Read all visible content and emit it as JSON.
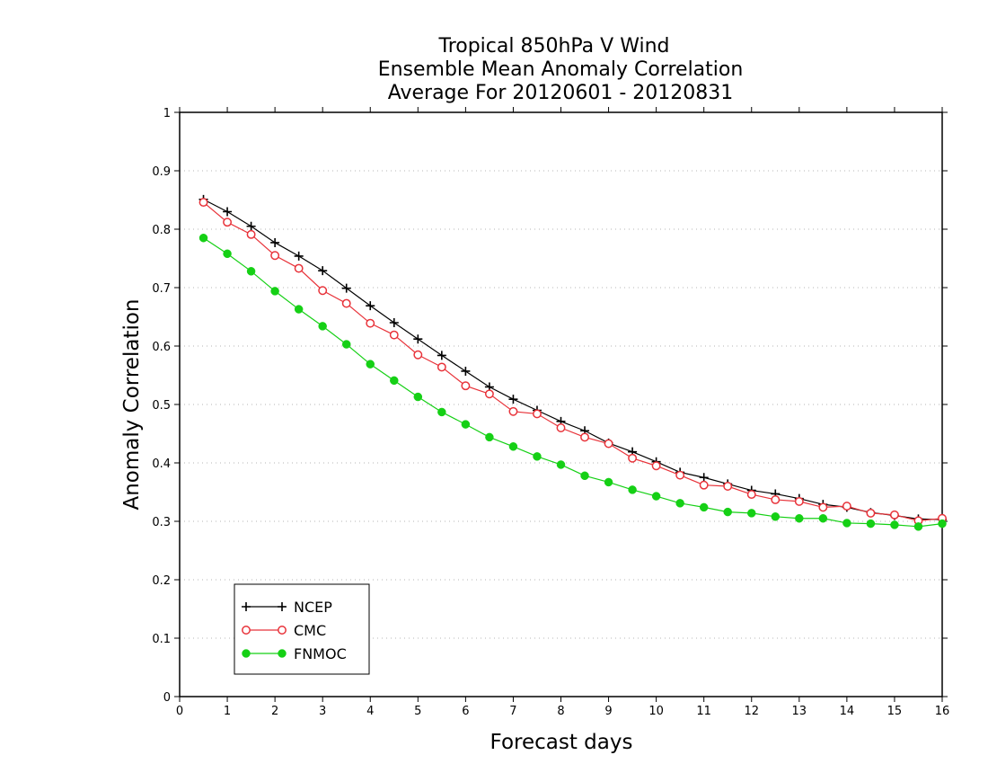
{
  "chart_data": {
    "type": "line",
    "title": [
      "Tropical 850hPa V Wind",
      "Ensemble Mean Anomaly Correlation",
      "Average For 20120601 - 20120831"
    ],
    "xlabel": "Forecast days",
    "ylabel": "Anomaly Correlation",
    "xlim": [
      0,
      16
    ],
    "ylim": [
      0,
      1
    ],
    "xticks": [
      "0",
      "1",
      "2",
      "3",
      "4",
      "5",
      "6",
      "7",
      "8",
      "9",
      "10",
      "11",
      "12",
      "13",
      "14",
      "15",
      "16"
    ],
    "yticks": [
      "0",
      "0.1",
      "0.2",
      "0.3",
      "0.4",
      "0.5",
      "0.6",
      "0.7",
      "0.8",
      "0.9",
      "1"
    ],
    "grid": true,
    "legend_position": "bottom-left",
    "x": [
      0.5,
      1,
      1.5,
      2,
      2.5,
      3,
      3.5,
      4,
      4.5,
      5,
      5.5,
      6,
      6.5,
      7,
      7.5,
      8,
      8.5,
      9,
      9.5,
      10,
      10.5,
      11,
      11.5,
      12,
      12.5,
      13,
      13.5,
      14,
      14.5,
      15,
      15.5,
      16
    ],
    "series": [
      {
        "name": "NCEP",
        "color": "#000000",
        "marker": "plus",
        "values": [
          0.851,
          0.83,
          0.805,
          0.777,
          0.754,
          0.729,
          0.699,
          0.669,
          0.64,
          0.612,
          0.584,
          0.557,
          0.53,
          0.509,
          0.49,
          0.471,
          0.455,
          0.434,
          0.419,
          0.402,
          0.384,
          0.375,
          0.364,
          0.353,
          0.347,
          0.339,
          0.329,
          0.324,
          0.315,
          0.31,
          0.304,
          0.303
        ]
      },
      {
        "name": "CMC",
        "color": "#e8333a",
        "marker": "open-circle",
        "values": [
          0.846,
          0.812,
          0.791,
          0.755,
          0.733,
          0.695,
          0.673,
          0.639,
          0.619,
          0.585,
          0.564,
          0.532,
          0.518,
          0.488,
          0.484,
          0.46,
          0.444,
          0.433,
          0.408,
          0.395,
          0.379,
          0.362,
          0.36,
          0.346,
          0.337,
          0.334,
          0.324,
          0.326,
          0.314,
          0.311,
          0.301,
          0.305
        ]
      },
      {
        "name": "FNMOC",
        "color": "#15d015",
        "marker": "filled-circle",
        "values": [
          0.785,
          0.758,
          0.728,
          0.694,
          0.663,
          0.634,
          0.603,
          0.569,
          0.541,
          0.513,
          0.487,
          0.466,
          0.444,
          0.428,
          0.411,
          0.397,
          0.378,
          0.367,
          0.354,
          0.343,
          0.331,
          0.324,
          0.316,
          0.314,
          0.308,
          0.305,
          0.305,
          0.297,
          0.296,
          0.294,
          0.291,
          0.296
        ]
      }
    ]
  }
}
